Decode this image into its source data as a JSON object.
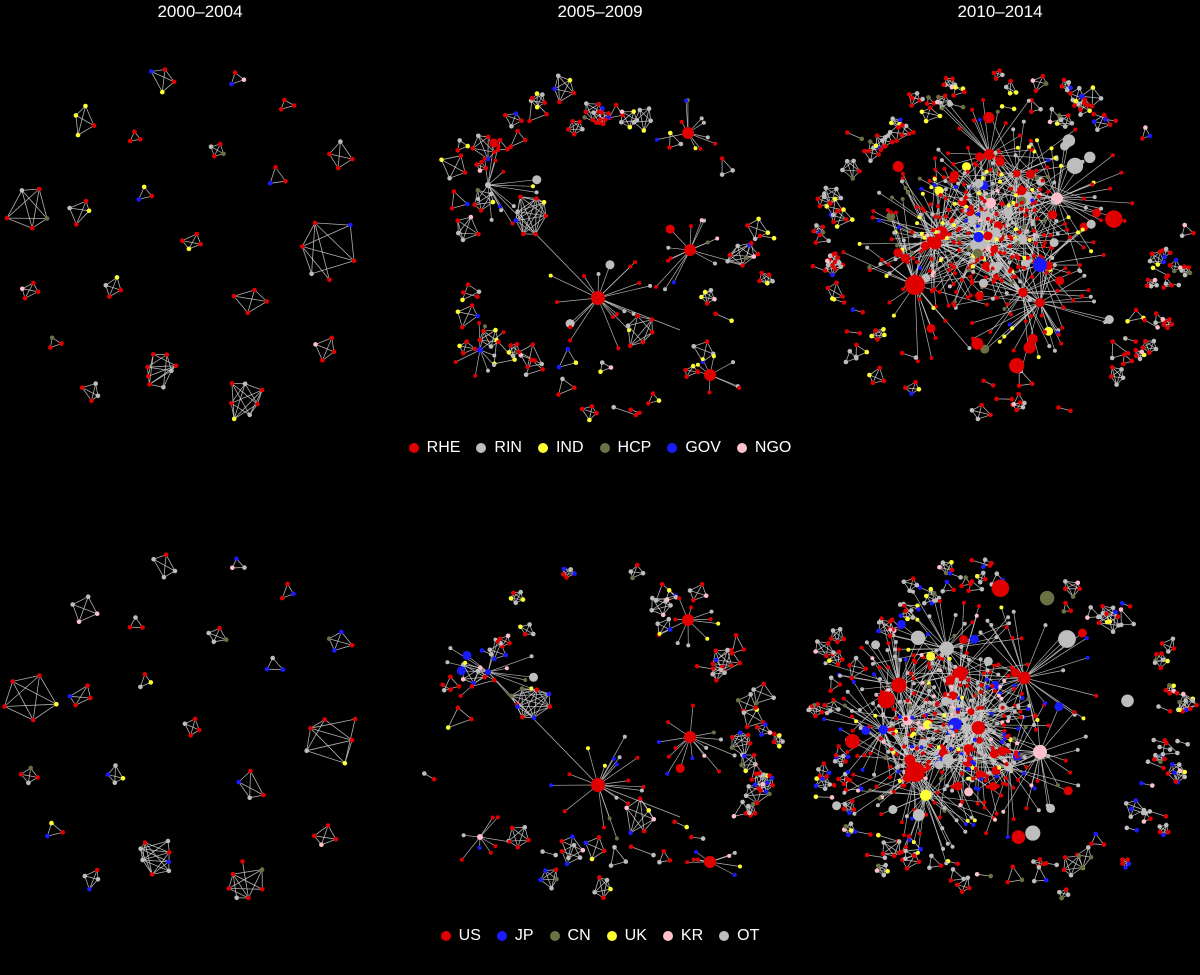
{
  "periods": [
    "2000–2004",
    "2005–2009",
    "2010–2014"
  ],
  "legend_type": {
    "items": [
      {
        "label": "RHE",
        "color": "#e00000"
      },
      {
        "label": "RIN",
        "color": "#bdbdbd"
      },
      {
        "label": "IND",
        "color": "#ffff33"
      },
      {
        "label": "HCP",
        "color": "#6b7045"
      },
      {
        "label": "GOV",
        "color": "#1a1aff"
      },
      {
        "label": "NGO",
        "color": "#ffc0cb"
      }
    ]
  },
  "legend_country": {
    "items": [
      {
        "label": "US",
        "color": "#e00000"
      },
      {
        "label": "JP",
        "color": "#1a1aff"
      },
      {
        "label": "CN",
        "color": "#6b7045"
      },
      {
        "label": "UK",
        "color": "#ffff33"
      },
      {
        "label": "KR",
        "color": "#ffc0cb"
      },
      {
        "label": "OT",
        "color": "#bdbdbd"
      }
    ]
  },
  "edge_color": "#cfcfcf"
}
